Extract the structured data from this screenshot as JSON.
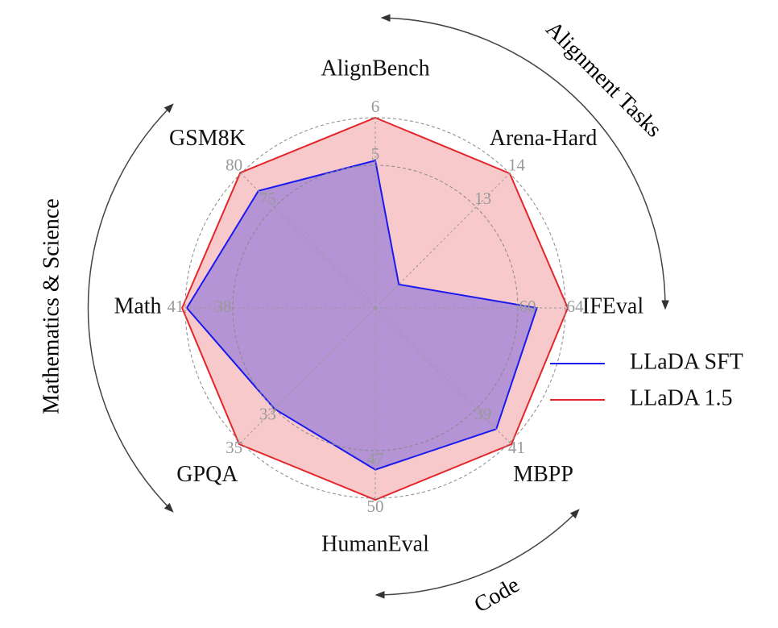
{
  "chart_data": {
    "type": "radar",
    "categories": [
      "AlignBench",
      "Arena-Hard",
      "IFEval",
      "MBPP",
      "HumanEval",
      "GPQA",
      "Math",
      "GSM8K"
    ],
    "axis_ranges": [
      [
        2,
        6
      ],
      [
        10,
        14
      ],
      [
        48,
        64
      ],
      [
        33,
        41
      ],
      [
        38,
        50
      ],
      [
        27,
        35
      ],
      [
        29,
        41
      ],
      [
        60,
        80
      ]
    ],
    "axis_ticks": [
      [
        5,
        6
      ],
      [
        13,
        14
      ],
      [
        60,
        64
      ],
      [
        39,
        41
      ],
      [
        47,
        50
      ],
      [
        33,
        35
      ],
      [
        38,
        41
      ],
      [
        75,
        80
      ]
    ],
    "series": [
      {
        "name": "LLaDA SFT",
        "color": "#1a1aee",
        "values": [
          5.1,
          10.7,
          61.6,
          40.2,
          48.2,
          33.0,
          40.9,
          77.4
        ]
      },
      {
        "name": "LLaDA 1.5",
        "color": "#e3262b",
        "values": [
          6.0,
          14.0,
          64.2,
          41.1,
          50.1,
          35.1,
          41.2,
          80.1
        ]
      }
    ],
    "grid": true,
    "legend": "right",
    "annotations": [
      "Alignment Tasks",
      "Mathematics & Science",
      "Code"
    ]
  }
}
